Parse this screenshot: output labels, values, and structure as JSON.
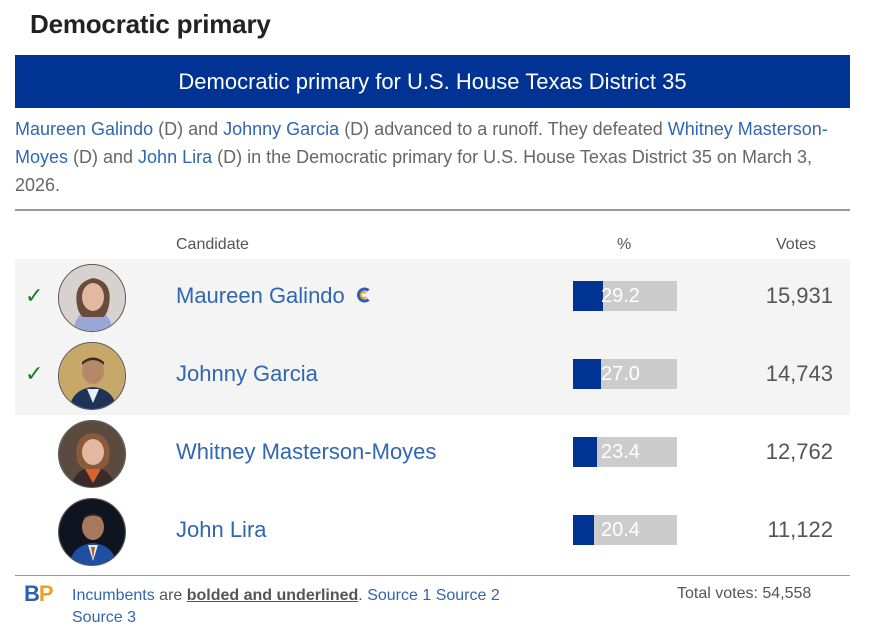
{
  "page_title": "Democratic primary",
  "race_banner": "Democratic primary for U.S. House Texas District 35",
  "summary": {
    "c1": "Maureen Galindo",
    "t1": " (D) and ",
    "c2": "Johnny Garcia",
    "t2": " (D) advanced to a runoff. They defeated ",
    "c3": "Whitney Masterson-Moyes",
    "t3": " (D) and ",
    "c4": "John Lira",
    "t4": " (D) in the Democratic primary for U.S. House Texas District 35 on March 3, 2026."
  },
  "columns": {
    "candidate": "Candidate",
    "percent": "%",
    "votes": "Votes"
  },
  "candidates": [
    {
      "name": "Maureen Galindo",
      "check": "✓",
      "percent": 29.2,
      "percent_label": "29.2",
      "votes": "15,931",
      "endorsement_icon": "ballotpedia-c-icon"
    },
    {
      "name": "Johnny Garcia",
      "check": "✓",
      "percent": 27.0,
      "percent_label": "27.0",
      "votes": "14,743"
    },
    {
      "name": "Whitney Masterson-Moyes",
      "percent": 23.4,
      "percent_label": "23.4",
      "votes": "12,762"
    },
    {
      "name": "John Lira",
      "percent": 20.4,
      "percent_label": "20.4",
      "votes": "11,122"
    }
  ],
  "footer": {
    "logo_b": "B",
    "logo_p": "P",
    "incumbents_link": "Incumbents",
    "text_are": " are ",
    "bolded": "bolded and underlined",
    "text_period": ". ",
    "source1": "Source 1",
    "source2": "Source 2",
    "source3": "Source 3",
    "total_votes": "Total votes: 54,558"
  },
  "colors": {
    "banner": "#003393",
    "link": "#3166b0",
    "check": "#1a7f1a",
    "bar_bg": "#cccccc",
    "bar_fill": "#003393"
  }
}
